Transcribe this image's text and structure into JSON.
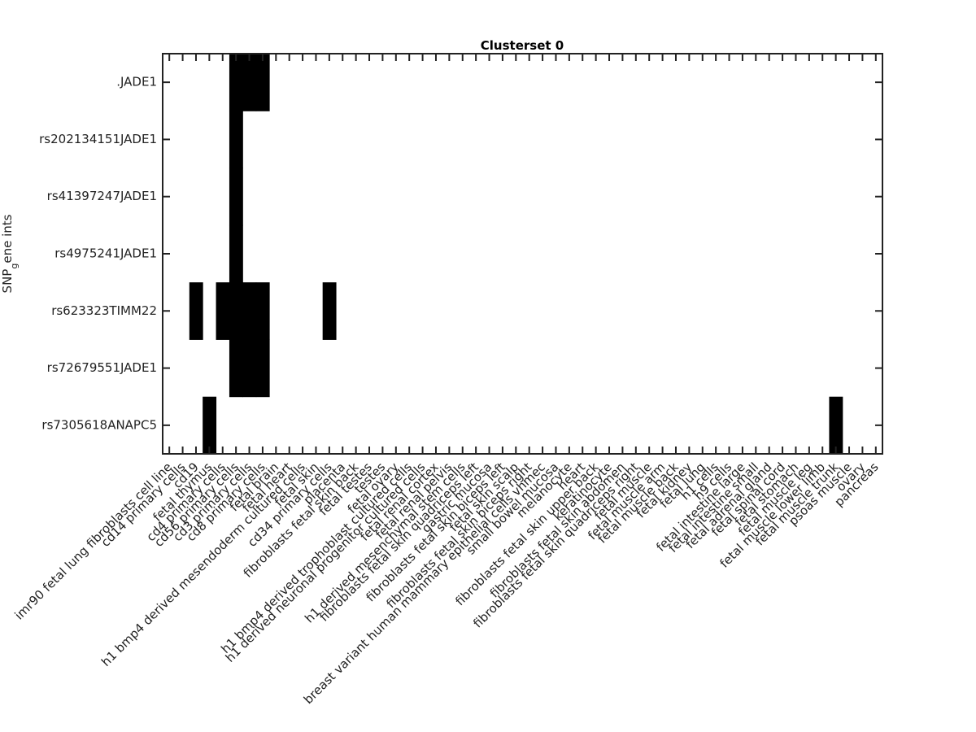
{
  "chart_data": {
    "type": "heatmap",
    "title": "Clusterset 0",
    "ylabel": "SNP",
    "ylabel_sub": "g",
    "ylabel_rest": "ene ints",
    "xlabel": "",
    "rows": [
      ".JADE1",
      "rs202134151JADE1",
      "rs41397247JADE1",
      "rs4975241JADE1",
      "rs623323TIMM22",
      "rs72679551JADE1",
      "rs7305618ANAPC5"
    ],
    "columns": [
      "imr90 fetal lung fibroblasts cell line",
      "cd14 primary cells",
      "cd19",
      "fetal thymus",
      "cd4 primary cells",
      "cd56 primary cells",
      "cd3 primary cells",
      "cd8 primary cells",
      "fetal brain",
      "fetal heart",
      "h1 bmp4 derived mesendoderm cultured cells",
      "fetal skin",
      "cd34 primary cells",
      "placenta",
      "fibroblasts fetal skin back",
      "fetal testes",
      "testes",
      "fetal ovary",
      "h1 bmp4 derived trophoblast cultured cells",
      "h1 derived neuronal progenitor cultured cells",
      "fetal renal cortex",
      "fetal renal pelvis",
      "h1 derived mesenchymal stem cells",
      "fibroblasts fetal skin quadriceps left",
      "gastric mucosa",
      "fibroblasts fetal skin biceps left",
      "fetal skin scalp",
      "fibroblasts fetal skin biceps right",
      "breast variant human mammary epithelial cells vhmec",
      "small bowel mucosa",
      "melanocyte",
      "heart",
      "fibroblasts fetal skin upper back",
      "keratinocyte",
      "fibroblasts fetal skin abdomen",
      "fibroblasts fetal skin quadriceps right",
      "fetal muscle",
      "fetal muscle arm",
      "fetal muscle back",
      "fetal kidney",
      "fetal lung",
      "h1 cells",
      "h9 cells",
      "fetal intestine large",
      "fetal intestine small",
      "fetal adrenal gland",
      "fetal spinal cord",
      "fetal stomach",
      "fetal muscle leg",
      "fetal muscle lower limb",
      "fetal muscle trunk",
      "psoas muscle",
      "ovary",
      "pancreas"
    ],
    "values": [
      [
        0,
        0,
        0,
        0,
        0,
        1,
        1,
        1,
        0,
        0,
        0,
        0,
        0,
        0,
        0,
        0,
        0,
        0,
        0,
        0,
        0,
        0,
        0,
        0,
        0,
        0,
        0,
        0,
        0,
        0,
        0,
        0,
        0,
        0,
        0,
        0,
        0,
        0,
        0,
        0,
        0,
        0,
        0,
        0,
        0,
        0,
        0,
        0,
        0,
        0,
        0,
        0,
        0,
        0
      ],
      [
        0,
        0,
        0,
        0,
        0,
        1,
        0,
        0,
        0,
        0,
        0,
        0,
        0,
        0,
        0,
        0,
        0,
        0,
        0,
        0,
        0,
        0,
        0,
        0,
        0,
        0,
        0,
        0,
        0,
        0,
        0,
        0,
        0,
        0,
        0,
        0,
        0,
        0,
        0,
        0,
        0,
        0,
        0,
        0,
        0,
        0,
        0,
        0,
        0,
        0,
        0,
        0,
        0,
        0
      ],
      [
        0,
        0,
        0,
        0,
        0,
        1,
        0,
        0,
        0,
        0,
        0,
        0,
        0,
        0,
        0,
        0,
        0,
        0,
        0,
        0,
        0,
        0,
        0,
        0,
        0,
        0,
        0,
        0,
        0,
        0,
        0,
        0,
        0,
        0,
        0,
        0,
        0,
        0,
        0,
        0,
        0,
        0,
        0,
        0,
        0,
        0,
        0,
        0,
        0,
        0,
        0,
        0,
        0,
        0
      ],
      [
        0,
        0,
        0,
        0,
        0,
        1,
        0,
        0,
        0,
        0,
        0,
        0,
        0,
        0,
        0,
        0,
        0,
        0,
        0,
        0,
        0,
        0,
        0,
        0,
        0,
        0,
        0,
        0,
        0,
        0,
        0,
        0,
        0,
        0,
        0,
        0,
        0,
        0,
        0,
        0,
        0,
        0,
        0,
        0,
        0,
        0,
        0,
        0,
        0,
        0,
        0,
        0,
        0,
        0
      ],
      [
        0,
        0,
        1,
        0,
        1,
        1,
        1,
        1,
        0,
        0,
        0,
        0,
        1,
        0,
        0,
        0,
        0,
        0,
        0,
        0,
        0,
        0,
        0,
        0,
        0,
        0,
        0,
        0,
        0,
        0,
        0,
        0,
        0,
        0,
        0,
        0,
        0,
        0,
        0,
        0,
        0,
        0,
        0,
        0,
        0,
        0,
        0,
        0,
        0,
        0,
        0,
        0,
        0,
        0
      ],
      [
        0,
        0,
        0,
        0,
        0,
        1,
        1,
        1,
        0,
        0,
        0,
        0,
        0,
        0,
        0,
        0,
        0,
        0,
        0,
        0,
        0,
        0,
        0,
        0,
        0,
        0,
        0,
        0,
        0,
        0,
        0,
        0,
        0,
        0,
        0,
        0,
        0,
        0,
        0,
        0,
        0,
        0,
        0,
        0,
        0,
        0,
        0,
        0,
        0,
        0,
        0,
        0,
        0,
        0
      ],
      [
        0,
        0,
        0,
        1,
        0,
        0,
        0,
        0,
        0,
        0,
        0,
        0,
        0,
        0,
        0,
        0,
        0,
        0,
        0,
        0,
        0,
        0,
        0,
        0,
        0,
        0,
        0,
        0,
        0,
        0,
        0,
        0,
        0,
        0,
        0,
        0,
        0,
        0,
        0,
        0,
        0,
        0,
        0,
        0,
        0,
        0,
        0,
        0,
        0,
        0,
        1,
        0,
        0,
        0
      ]
    ],
    "colors": {
      "on": "#000000",
      "off": "#ffffff",
      "axis": "#222222"
    },
    "grid": false,
    "legend": "none"
  }
}
